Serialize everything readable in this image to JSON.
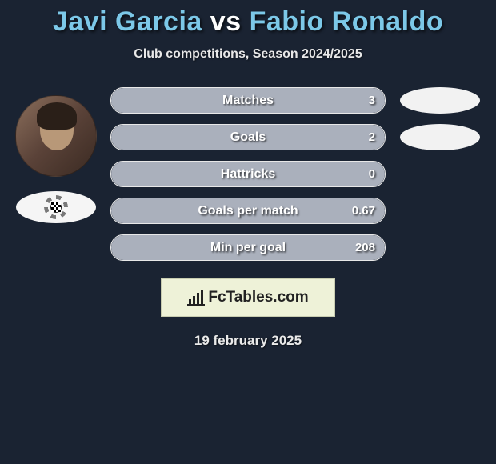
{
  "colors": {
    "background": "#1a2332",
    "accent": "#7cc8e8",
    "fill": "#aab0bc",
    "border": "#e8e8e8",
    "white": "#ffffff"
  },
  "header": {
    "player1": "Javi Garcia",
    "vs": "vs",
    "player2": "Fabio Ronaldo",
    "subtitle": "Club competitions, Season 2024/2025"
  },
  "stats": [
    {
      "label": "Matches",
      "left_value": "3",
      "fill_pct": 100
    },
    {
      "label": "Goals",
      "left_value": "2",
      "fill_pct": 100
    },
    {
      "label": "Hattricks",
      "left_value": "0",
      "fill_pct": 100
    },
    {
      "label": "Goals per match",
      "left_value": "0.67",
      "fill_pct": 100
    },
    {
      "label": "Min per goal",
      "left_value": "208",
      "fill_pct": 100
    }
  ],
  "right_ovals_count": 2,
  "logo": {
    "brand": "FcTables.com"
  },
  "footer": {
    "date": "19 february 2025"
  }
}
